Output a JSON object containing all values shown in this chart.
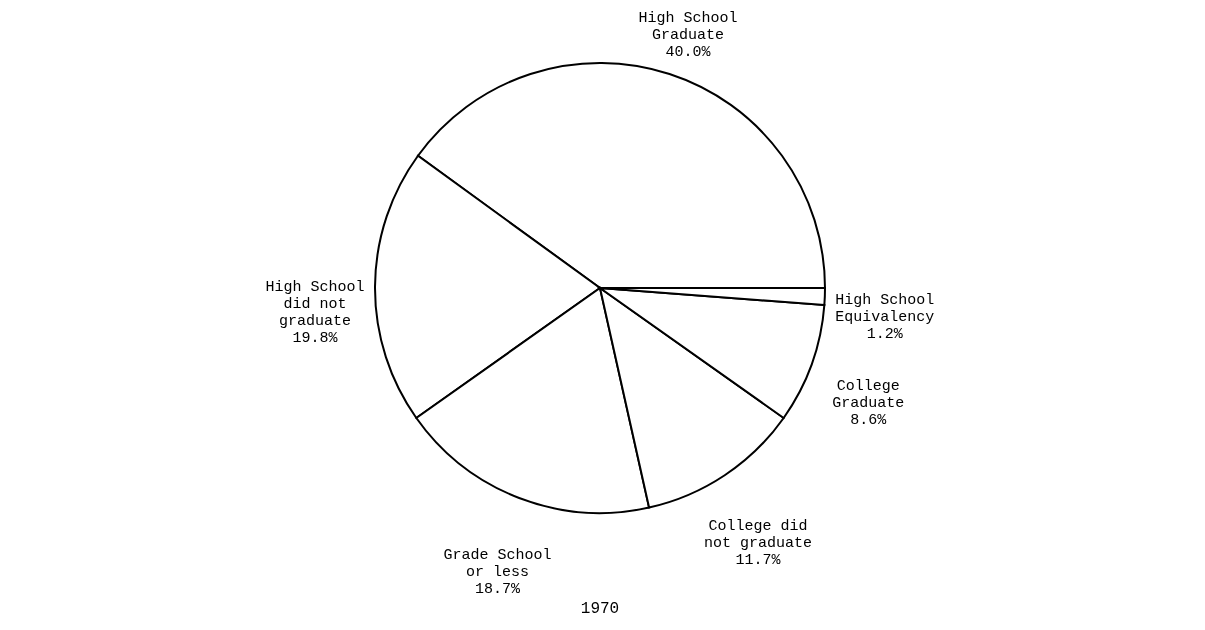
{
  "chart_data": {
    "type": "pie",
    "title": "1970",
    "categories": [
      "High School Graduate",
      "High School did not graduate",
      "Grade School or less",
      "College did not graduate",
      "College Graduate",
      "High School Equivalency"
    ],
    "values": [
      40.0,
      19.8,
      18.7,
      11.7,
      8.6,
      1.2
    ],
    "value_labels": [
      "40.0%",
      "19.8%",
      "18.7%",
      "11.7%",
      "8.6%",
      "1.2%"
    ],
    "colors": [
      "#ffffff",
      "#ffffff",
      "#ffffff",
      "#ffffff",
      "#ffffff",
      "#ffffff"
    ],
    "legend": false
  }
}
